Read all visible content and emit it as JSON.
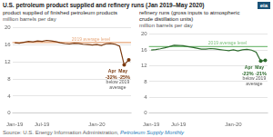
{
  "title": "U.S. petroleum product supplied and refinery runs (Jan 2019–May 2020)",
  "logo": "eia",
  "source": [
    "Source: U.S. Energy Information Administration, ",
    "Petroleum Supply Monthly"
  ],
  "chart_data": [
    {
      "type": "line",
      "title": [
        "product supplied of finished petroleum products"
      ],
      "subtitle": "million barrels per day",
      "categories": [
        "Jan-19",
        null,
        null,
        null,
        null,
        null,
        "Jul-19",
        null,
        null,
        null,
        null,
        null,
        null,
        null,
        null,
        null,
        null,
        null,
        "Jan-20",
        null,
        null,
        null,
        null,
        null,
        null,
        null
      ],
      "series": [
        {
          "color": "#7B3A10",
          "values": [
            16.5,
            16.4,
            16.6,
            16.8,
            16.7,
            16.9,
            16.8,
            17.05,
            16.9,
            16.75,
            16.5,
            16.3,
            16.2,
            16.4,
            16.35,
            16.15,
            16.05,
            15.95,
            16.05,
            15.85,
            16.25,
            16.35,
            16.15,
            15.7,
            11.3,
            12.5
          ]
        }
      ],
      "average": {
        "value": 16.55,
        "label": "2019 average level",
        "color": "#E8A87C"
      },
      "annotations": [
        "Apr  May",
        "-32% -25%",
        "below 2019",
        "average"
      ],
      "ylim": [
        0,
        20
      ],
      "yticks": [
        0,
        4,
        8,
        12,
        16,
        20
      ],
      "grid": true
    },
    {
      "type": "line",
      "title": [
        "refinery runs (gross inputs to atmospheric",
        "crude distillation units)"
      ],
      "subtitle": "million barrels per day",
      "categories": [
        "Jan-19",
        null,
        null,
        null,
        null,
        null,
        "Jul-19",
        null,
        null,
        null,
        null,
        null,
        null,
        null,
        null,
        null,
        null,
        null,
        "Jan-20",
        null,
        null,
        null,
        null,
        null,
        null,
        null
      ],
      "series": [
        {
          "color": "#2D6A2D",
          "values": [
            16.0,
            16.1,
            16.3,
            16.55,
            16.85,
            17.2,
            17.15,
            17.05,
            16.85,
            16.65,
            16.45,
            16.2,
            16.2,
            16.35,
            16.25,
            16.1,
            15.95,
            15.8,
            16.05,
            15.75,
            16.05,
            16.15,
            15.95,
            15.45,
            13.2,
            13.4
          ]
        }
      ],
      "average": {
        "value": 16.85,
        "label": "2019 average level",
        "color": "#7CBF7C"
      },
      "annotations": [
        "Apr  May",
        "-22% -21%",
        "below 2019",
        "average"
      ],
      "ylim": [
        0,
        20
      ],
      "yticks": [
        0,
        4,
        8,
        12,
        16,
        20
      ],
      "grid": true
    }
  ]
}
